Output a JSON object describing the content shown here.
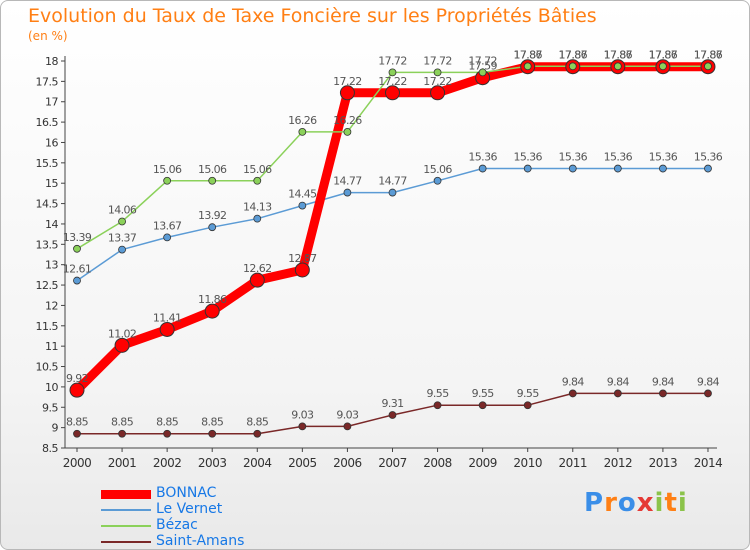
{
  "chart_data": {
    "type": "line",
    "title": "Evolution du Taux de Taxe Foncière sur les Propriétés Bâties",
    "subtitle": "(en %)",
    "x": [
      "2000",
      "2001",
      "2002",
      "2003",
      "2004",
      "2005",
      "2006",
      "2007",
      "2008",
      "2009",
      "2010",
      "2011",
      "2012",
      "2013",
      "2014"
    ],
    "ylim": [
      8.5,
      18
    ],
    "yticks": [
      "8.5",
      "9",
      "9.5",
      "10",
      "10.5",
      "11",
      "11.5",
      "12",
      "12.5",
      "13",
      "13.5",
      "14",
      "14.5",
      "15",
      "15.5",
      "16",
      "16.5",
      "17",
      "17.5",
      "18"
    ],
    "grid": false,
    "legend_position": "bottom-left",
    "series": [
      {
        "name": "BONNAC",
        "color": "#ff0000",
        "values": [
          9.92,
          11.02,
          11.41,
          11.86,
          12.62,
          12.87,
          17.22,
          17.22,
          17.22,
          17.59,
          17.86,
          17.86,
          17.86,
          17.86,
          17.86
        ],
        "labels": [
          "9.92",
          "11.02",
          "11.41",
          "11.86",
          "12.62",
          "12.87",
          "17.22",
          "17.22",
          "17.22",
          "17.59",
          "17.86",
          "17.86",
          "17.86",
          "17.86",
          "17.86"
        ]
      },
      {
        "name": "Le Vernet",
        "color": "#5b9bd5",
        "values": [
          12.61,
          13.37,
          13.67,
          13.92,
          14.13,
          14.45,
          14.77,
          14.77,
          15.06,
          15.36,
          15.36,
          15.36,
          15.36,
          15.36,
          15.36
        ],
        "labels": [
          "12.61",
          "13.37",
          "13.67",
          "13.92",
          "14.13",
          "14.45",
          "14.77",
          "14.77",
          "15.06",
          "15.36",
          "15.36",
          "15.36",
          "15.36",
          "15.36",
          "15.36"
        ]
      },
      {
        "name": "Bézac",
        "color": "#8bd15a",
        "values": [
          13.39,
          14.06,
          15.06,
          15.06,
          15.06,
          16.26,
          16.26,
          17.72,
          17.72,
          17.72,
          17.87,
          17.87,
          17.87,
          17.87,
          17.87
        ],
        "labels": [
          "13.39",
          "14.06",
          "15.06",
          "15.06",
          "15.06",
          "16.26",
          "16.26",
          "17.72",
          "17.72",
          "17.72",
          "17.87",
          "17.87",
          "17.87",
          "17.87",
          "17.87"
        ]
      },
      {
        "name": "Saint-Amans",
        "color": "#7a2828",
        "values": [
          8.85,
          8.85,
          8.85,
          8.85,
          8.85,
          9.03,
          9.03,
          9.31,
          9.55,
          9.55,
          9.55,
          9.84,
          9.84,
          9.84,
          9.84
        ],
        "labels": [
          "8.85",
          "8.85",
          "8.85",
          "8.85",
          "8.85",
          "9.03",
          "9.03",
          "9.31",
          "9.55",
          "9.55",
          "9.55",
          "9.84",
          "9.84",
          "9.84",
          "9.84"
        ]
      }
    ]
  },
  "logo": {
    "letters": [
      "P",
      "r",
      "o",
      "x",
      "i",
      "t",
      "i"
    ]
  }
}
